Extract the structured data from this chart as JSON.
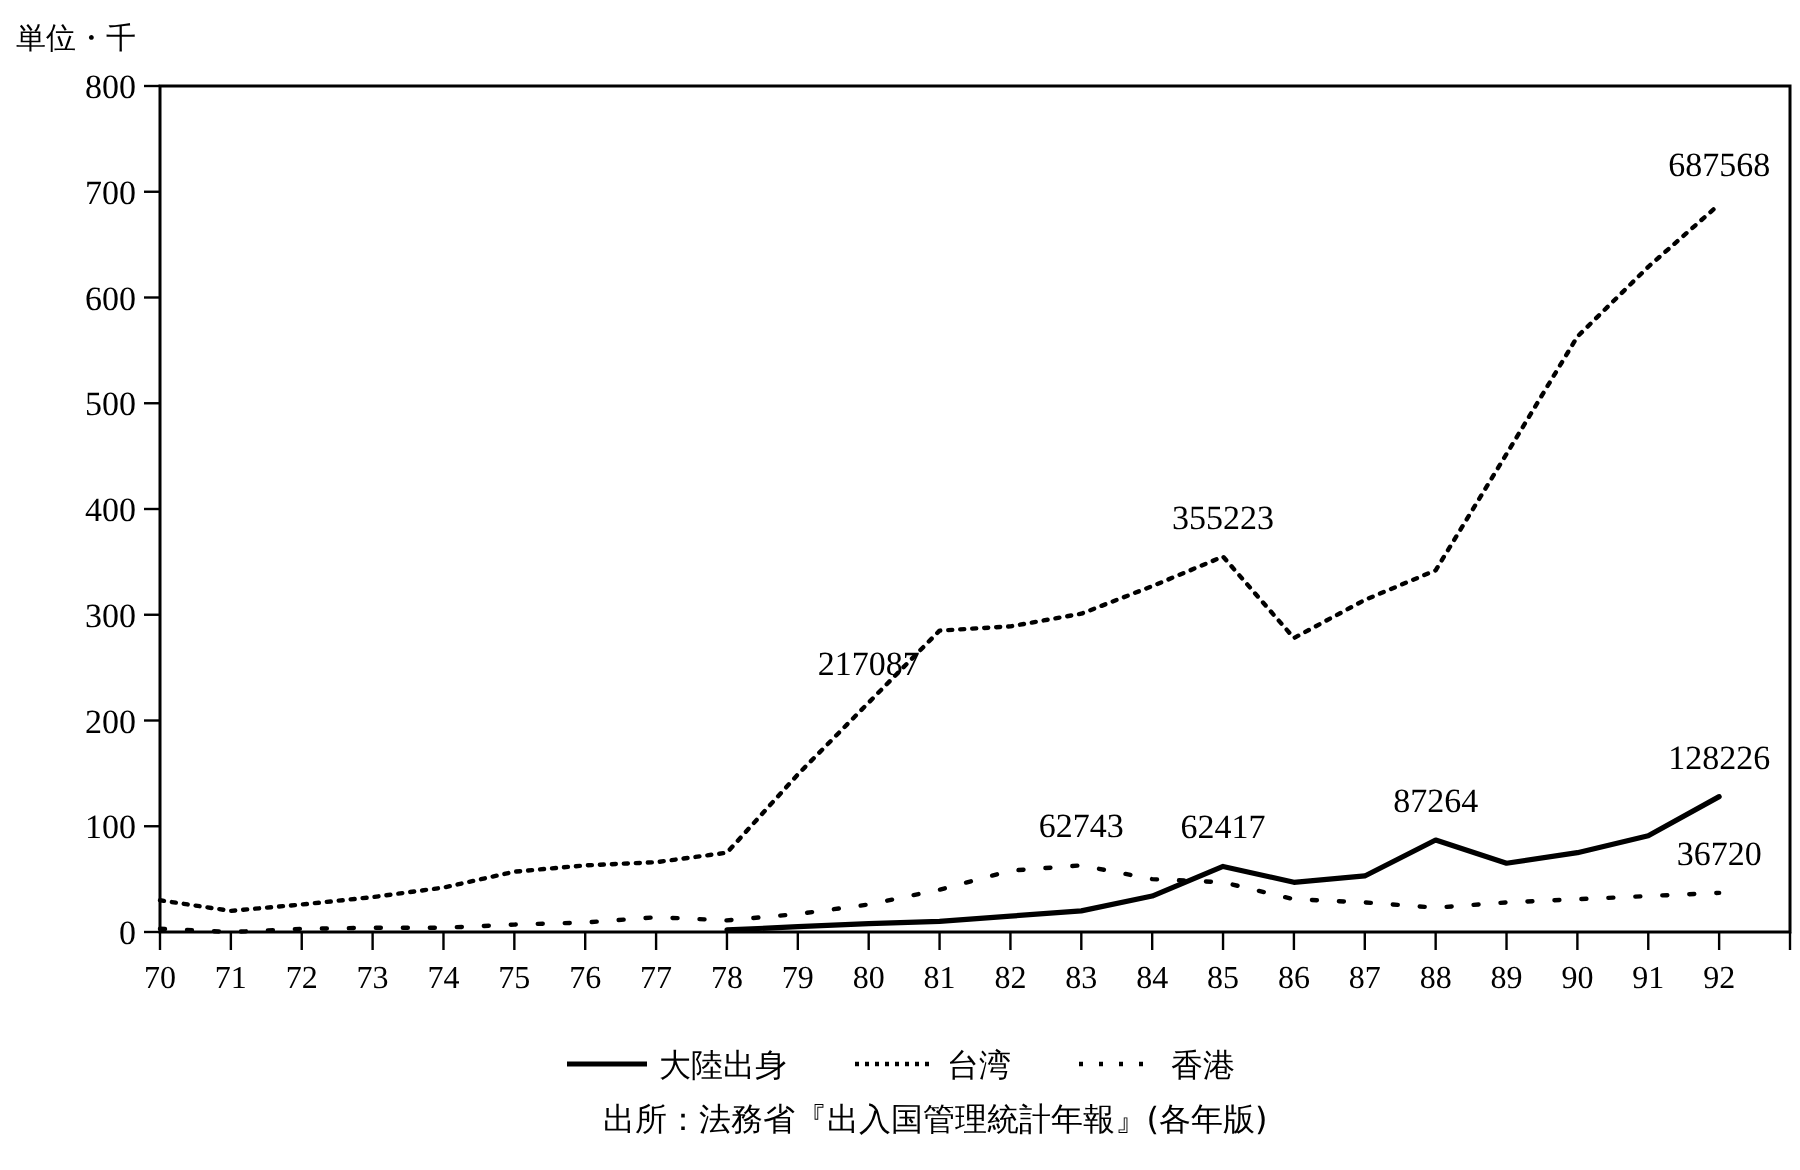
{
  "chart_data": {
    "type": "line",
    "ylabel": "単位・千",
    "x": [
      70,
      71,
      72,
      73,
      74,
      75,
      76,
      77,
      78,
      79,
      80,
      81,
      82,
      83,
      84,
      85,
      86,
      87,
      88,
      89,
      90,
      91,
      92
    ],
    "series": [
      {
        "name": "大陸出身",
        "color": "#000000",
        "line_style": "solid",
        "values": [
          null,
          null,
          null,
          null,
          null,
          null,
          null,
          null,
          2,
          5,
          8,
          10,
          15,
          20,
          34,
          62,
          47,
          53,
          87,
          65,
          75,
          91,
          128
        ]
      },
      {
        "name": "台湾",
        "color": "#000000",
        "line_style": "dotted",
        "values": [
          30,
          20,
          26,
          33,
          42,
          57,
          63,
          66,
          75,
          149,
          217,
          285,
          289,
          301,
          327,
          355,
          278,
          314,
          342,
          452,
          563,
          629,
          688
        ]
      },
      {
        "name": "香港",
        "color": "#000000",
        "line_style": "dotted",
        "values": [
          3,
          0,
          3,
          4,
          4,
          7,
          9,
          14,
          11,
          17,
          26,
          40,
          58,
          63,
          50,
          47,
          31,
          28,
          23,
          28,
          31,
          34,
          37
        ]
      }
    ],
    "xlim": [
      70,
      93
    ],
    "xticks": [
      70,
      71,
      72,
      73,
      74,
      75,
      76,
      77,
      78,
      79,
      80,
      81,
      82,
      83,
      84,
      85,
      86,
      87,
      88,
      89,
      90,
      91,
      92,
      {
        "value": 93,
        "label": null
      }
    ],
    "ylim": [
      0,
      800
    ],
    "yticks": [
      0,
      100,
      200,
      300,
      400,
      500,
      600,
      700,
      800
    ],
    "grid": false,
    "legend": "bottom",
    "marker": "none",
    "annotations": [
      {
        "text": "217087",
        "x": 80,
        "y": 217
      },
      {
        "text": "355223",
        "x": 85,
        "y": 355
      },
      {
        "text": "687568",
        "x": 92,
        "y": 688
      },
      {
        "text": "62743",
        "x": 83,
        "y": 63
      },
      {
        "text": "62417",
        "x": 85,
        "y": 62
      },
      {
        "text": "87264",
        "x": 88,
        "y": 87
      },
      {
        "text": "128226",
        "x": 92,
        "y": 128
      },
      {
        "text": "36720",
        "x": 92,
        "y": 37
      },
      "出所：法務省『出入国管理統計年報』(各年版)"
    ]
  }
}
